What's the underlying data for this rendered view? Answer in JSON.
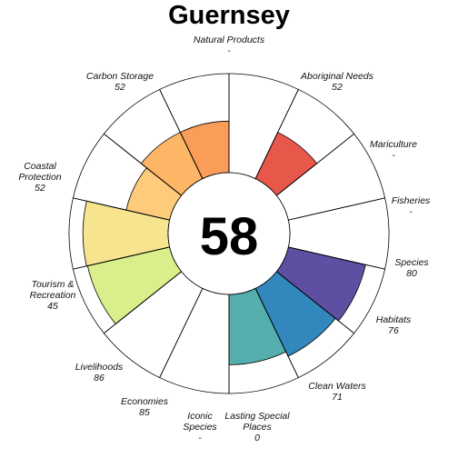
{
  "chart_data": {
    "type": "flower",
    "title": "Guernsey",
    "score": "58",
    "range": [
      0,
      100
    ],
    "petals": [
      {
        "name": "Natural Products",
        "value": null,
        "display": "-",
        "color": null
      },
      {
        "name": "Aboriginal Needs",
        "value": 52,
        "display": "52",
        "color": "#E8584A"
      },
      {
        "name": "Mariculture",
        "value": null,
        "display": "-",
        "color": null
      },
      {
        "name": "Fisheries",
        "value": null,
        "display": "-",
        "color": null
      },
      {
        "name": "Species",
        "value": 80,
        "display": "80",
        "color": "#5E4FA2"
      },
      {
        "name": "Habitats",
        "value": 76,
        "display": "76",
        "color": "#3288BD"
      },
      {
        "name": "Clean Waters",
        "value": 71,
        "display": "71",
        "color": "#54AEAD"
      },
      {
        "name": "Lasting Special Places",
        "value": 0,
        "display": "0",
        "color": "#88CFA4"
      },
      {
        "name": "Iconic Species",
        "value": null,
        "display": "-",
        "color": null
      },
      {
        "name": "Economies",
        "value": 85,
        "display": "85",
        "color": "#D9EF8B"
      },
      {
        "name": "Livelihoods",
        "value": 86,
        "display": "86",
        "color": "#F6E48E"
      },
      {
        "name": "Tourism & Recreation",
        "value": 45,
        "display": "45",
        "color": "#FDCB7A"
      },
      {
        "name": "Coastal Protection",
        "value": 52,
        "display": "52",
        "color": "#FDB566"
      },
      {
        "name": "Carbon Storage",
        "value": 52,
        "display": "52",
        "color": "#F99D59"
      }
    ],
    "labels": [
      {
        "lines": [
          "Natural Products"
        ],
        "value": "-"
      },
      {
        "lines": [
          "Aboriginal Needs"
        ],
        "value": "52"
      },
      {
        "lines": [
          "Mariculture"
        ],
        "value": "-"
      },
      {
        "lines": [
          "Fisheries"
        ],
        "value": "-"
      },
      {
        "lines": [
          "Species"
        ],
        "value": "80"
      },
      {
        "lines": [
          "Habitats"
        ],
        "value": "76"
      },
      {
        "lines": [
          "Clean Waters"
        ],
        "value": "71"
      },
      {
        "lines": [
          "Lasting Special",
          "Places"
        ],
        "value": "0"
      },
      {
        "lines": [
          "Iconic",
          "Species"
        ],
        "value": "-"
      },
      {
        "lines": [
          "Economies"
        ],
        "value": "85"
      },
      {
        "lines": [
          "Livelihoods"
        ],
        "value": "86"
      },
      {
        "lines": [
          "Tourism &",
          "Recreation"
        ],
        "value": "45"
      },
      {
        "lines": [
          "Coastal",
          "Protection"
        ],
        "value": "52"
      },
      {
        "lines": [
          "Carbon Storage"
        ],
        "value": "52"
      }
    ]
  }
}
